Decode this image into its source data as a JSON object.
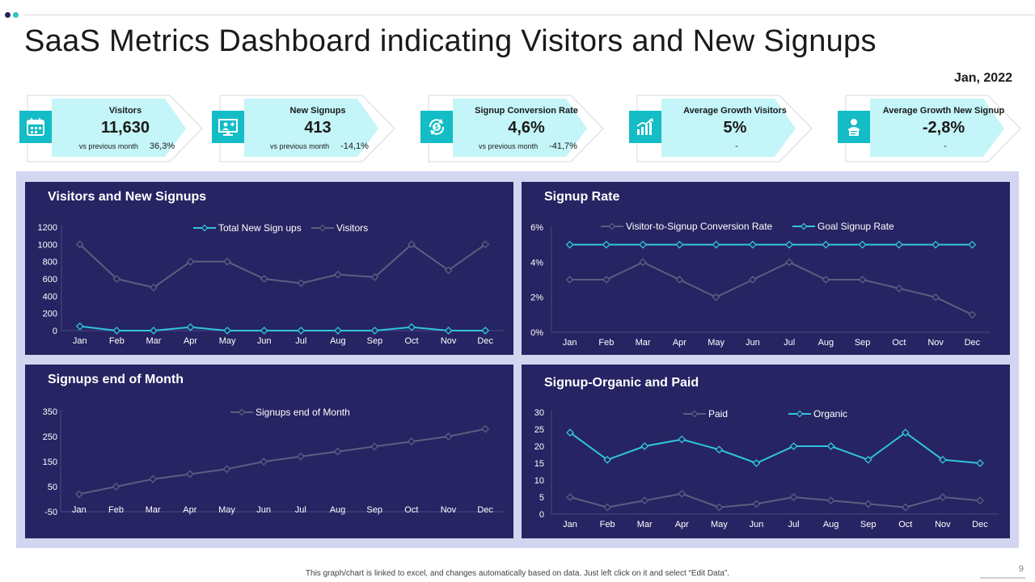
{
  "title": "SaaS Metrics Dashboard indicating Visitors and New Signups",
  "period": "Jan, 2022",
  "colors": {
    "navy": "#272463",
    "teal": "#14bcc5",
    "cyan_line": "#2fc6dc",
    "grey_line": "#5f5d80",
    "card_fill": "#c4f5f8",
    "panel_bg": "#d4d5f0"
  },
  "kpis": [
    {
      "label": "Visitors",
      "value": "11,630",
      "sub_label": "vs previous month",
      "sub_value": "36,3%",
      "icon": "calendar-icon"
    },
    {
      "label": "New Signups",
      "value": "413",
      "sub_label": "vs previous month",
      "sub_value": "-14,1%",
      "icon": "monitor-user-icon"
    },
    {
      "label": "Signup Conversion Rate",
      "value": "4,6%",
      "sub_label": "vs previous month",
      "sub_value": "-41,7%",
      "icon": "dollar-cycle-icon"
    },
    {
      "label": "Average Growth Visitors",
      "value": "5%",
      "sub_label": "",
      "sub_value": "-",
      "icon": "bar-growth-icon"
    },
    {
      "label": "Average Growth New Signup",
      "value": "-2,8%",
      "sub_label": "",
      "sub_value": "-",
      "icon": "user-document-icon"
    }
  ],
  "chart_data": [
    {
      "type": "line",
      "title": "Visitors and New Signups",
      "categories": [
        "Jan",
        "Feb",
        "Mar",
        "Apr",
        "May",
        "Jun",
        "Jul",
        "Aug",
        "Sep",
        "Oct",
        "Nov",
        "Dec"
      ],
      "yticks": [
        "1200",
        "1000",
        "800",
        "600",
        "400",
        "200",
        "0"
      ],
      "ylim": [
        0,
        1200
      ],
      "series": [
        {
          "name": "Total New Sign ups",
          "color": "#2fc6dc",
          "values": [
            50,
            0,
            0,
            40,
            0,
            0,
            0,
            0,
            0,
            40,
            0,
            0
          ]
        },
        {
          "name": "Visitors",
          "color": "#5f5d80",
          "values": [
            1000,
            600,
            500,
            800,
            800,
            600,
            550,
            650,
            620,
            1000,
            700,
            1000
          ]
        }
      ],
      "legend": "top-center"
    },
    {
      "type": "line",
      "title": "Signup Rate",
      "categories": [
        "Jan",
        "Feb",
        "Mar",
        "Apr",
        "May",
        "Jun",
        "Jul",
        "Aug",
        "Sep",
        "Oct",
        "Nov",
        "Dec"
      ],
      "yticks": [
        "6%",
        "4%",
        "2%",
        "0%"
      ],
      "ylim": [
        0,
        6
      ],
      "series": [
        {
          "name": "Visitor-to-Signup Conversion Rate",
          "color": "#5f5d80",
          "values": [
            3,
            3,
            4,
            3,
            2,
            3,
            4,
            3,
            3,
            2.5,
            2,
            1
          ]
        },
        {
          "name": "Goal Signup Rate",
          "color": "#2fc6dc",
          "values": [
            5,
            5,
            5,
            5,
            5,
            5,
            5,
            5,
            5,
            5,
            5,
            5
          ]
        }
      ],
      "legend": "top-center"
    },
    {
      "type": "line",
      "title": "Signups end of Month",
      "categories": [
        "Jan",
        "Feb",
        "Mar",
        "Apr",
        "May",
        "Jun",
        "Jul",
        "Aug",
        "Sep",
        "Oct",
        "Nov",
        "Dec"
      ],
      "yticks": [
        "350",
        "250",
        "150",
        "50",
        "-50"
      ],
      "ylim": [
        -50,
        350
      ],
      "series": [
        {
          "name": "Signups end of Month",
          "color": "#5f5d80",
          "values": [
            20,
            50,
            80,
            100,
            120,
            150,
            170,
            190,
            210,
            230,
            250,
            280
          ]
        }
      ],
      "legend": "top-center"
    },
    {
      "type": "line",
      "title": "Signup-Organic and Paid",
      "categories": [
        "Jan",
        "Feb",
        "Mar",
        "Apr",
        "May",
        "Jun",
        "Jul",
        "Aug",
        "Sep",
        "Oct",
        "Nov",
        "Dec"
      ],
      "yticks": [
        "30",
        "25",
        "20",
        "15",
        "10",
        "5",
        "0"
      ],
      "ylim": [
        0,
        30
      ],
      "series": [
        {
          "name": "Paid",
          "color": "#5f5d80",
          "values": [
            5,
            2,
            4,
            6,
            2,
            3,
            5,
            4,
            3,
            2,
            5,
            4
          ]
        },
        {
          "name": "Organic",
          "color": "#2fc6dc",
          "values": [
            24,
            16,
            20,
            22,
            19,
            15,
            20,
            20,
            16,
            24,
            16,
            15
          ]
        }
      ],
      "legend": "top-center"
    }
  ],
  "footer": "This graph/chart is linked to excel, and changes automatically based on data. Just left click on it and select “Edit Data”.",
  "page_number": "9"
}
